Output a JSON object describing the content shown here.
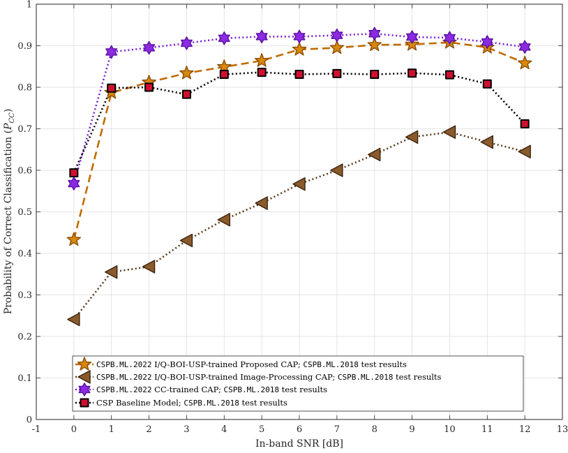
{
  "chart_data": {
    "type": "line",
    "title": "",
    "xlabel": "In-band SNR [dB]",
    "ylabel": "Probability of Correct Classification (P_CC)",
    "ylabel_main": "Probability of Correct Classification (",
    "ylabel_symbol": "P",
    "ylabel_subscript": "CC",
    "ylabel_close": ")",
    "xlim": [
      -1,
      13
    ],
    "ylim": [
      0,
      1
    ],
    "xticks": [
      "-1",
      "0",
      "1",
      "2",
      "3",
      "4",
      "5",
      "6",
      "7",
      "8",
      "9",
      "10",
      "11",
      "12",
      "13"
    ],
    "yticks": [
      "0",
      "0.1",
      "0.2",
      "0.3",
      "0.4",
      "0.5",
      "0.6",
      "0.7",
      "0.8",
      "0.9",
      "1"
    ],
    "grid": true,
    "legend_position": "bottom-left",
    "x": [
      0,
      1,
      2,
      3,
      4,
      5,
      6,
      7,
      8,
      9,
      10,
      11,
      12
    ],
    "series": [
      {
        "name": "CSPB.ML.2022 I/Q-BOI-USP-trained Proposed CAP; CSPB.ML.2018 test results",
        "legend_parts": [
          {
            "text": "CSPB.ML.2022",
            "mono": true
          },
          {
            "text": " I/Q-BOI-USP-trained Proposed CAP; ",
            "mono": false
          },
          {
            "text": "CSPB.ML.2018",
            "mono": true
          },
          {
            "text": " test results",
            "mono": false
          }
        ],
        "values": [
          0.433,
          0.787,
          0.812,
          0.834,
          0.849,
          0.864,
          0.891,
          0.895,
          0.902,
          0.903,
          0.908,
          0.896,
          0.858
        ],
        "color": "#c06b00",
        "marker": "star",
        "marker_fill": "#d9880f",
        "marker_edge": "#8a4c00",
        "line_style": "dashed"
      },
      {
        "name": "CSPB.ML.2022 I/Q-BOI-USP-trained Image-Processing CAP; CSPB.ML.2018 test results",
        "legend_parts": [
          {
            "text": "CSPB.ML.2022",
            "mono": true
          },
          {
            "text": " I/Q-BOI-USP-trained Image-Processing CAP; ",
            "mono": false
          },
          {
            "text": "CSPB.ML.2018",
            "mono": true
          },
          {
            "text": " test results",
            "mono": false
          }
        ],
        "values": [
          0.241,
          0.355,
          0.368,
          0.431,
          0.481,
          0.521,
          0.567,
          0.6,
          0.638,
          0.68,
          0.692,
          0.668,
          0.645
        ],
        "color": "#5a3a1a",
        "marker": "triangle-left",
        "marker_fill": "#8a5a2b",
        "marker_edge": "#3a2410",
        "line_style": "dotted"
      },
      {
        "name": "CSPB.ML.2022 CC-trained CAP; CSPB.ML.2018 test results",
        "legend_parts": [
          {
            "text": "CSPB.ML.2022",
            "mono": true
          },
          {
            "text": " CC-trained CAP; ",
            "mono": false
          },
          {
            "text": "CSPB.ML.2018",
            "mono": true
          },
          {
            "text": " test results",
            "mono": false
          }
        ],
        "values": [
          0.568,
          0.885,
          0.895,
          0.906,
          0.918,
          0.922,
          0.922,
          0.925,
          0.929,
          0.921,
          0.919,
          0.909,
          0.897
        ],
        "color": "#7a1fd0",
        "marker": "hexagram",
        "marker_fill": "#8a2be2",
        "marker_edge": "#5a0fa0",
        "line_style": "dotted"
      },
      {
        "name": "CSP Baseline Model; CSPB.ML.2018 test results",
        "legend_parts": [
          {
            "text": "CSP Baseline Model; ",
            "mono": false
          },
          {
            "text": "CSPB.ML.2018",
            "mono": true
          },
          {
            "text": " test results",
            "mono": false
          }
        ],
        "values": [
          0.594,
          0.798,
          0.8,
          0.783,
          0.831,
          0.836,
          0.831,
          0.833,
          0.831,
          0.834,
          0.83,
          0.808,
          0.712
        ],
        "color": "#000000",
        "marker": "square",
        "marker_fill": "#d01030",
        "marker_edge": "#000000",
        "line_style": "dotted"
      }
    ]
  }
}
